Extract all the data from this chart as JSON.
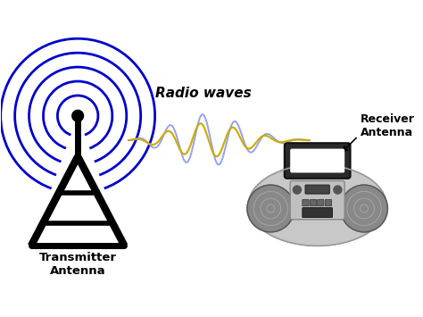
{
  "bg_color": "#ffffff",
  "label_transmitter": "Transmitter\nAntenna",
  "label_receiver": "Receiver\nAntenna",
  "label_waves": "Radio waves",
  "arc_color": "#0000cc",
  "wave_color_blue": "#8899ee",
  "wave_color_gold": "#ccaa00",
  "radio_body_color": "#c8c8c8",
  "radio_body_edge": "#999999",
  "radio_speaker_color": "#888888",
  "radio_dark": "#333333",
  "radio_center_color": "#bbbbbb",
  "arc_widths": [
    2.0,
    2.0,
    2.0,
    2.0,
    2.0
  ],
  "arc_radii": [
    0.5,
    0.85,
    1.2,
    1.55,
    1.9
  ],
  "arc_theta1": -70,
  "arc_theta2": 250
}
